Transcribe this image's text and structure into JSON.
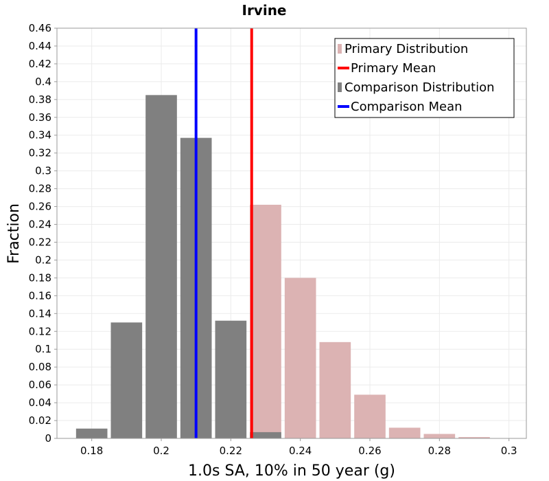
{
  "chart_data": {
    "type": "histogram",
    "title": "Irvine",
    "xlabel": "1.0s SA, 10% in 50 year (g)",
    "ylabel": "Fraction",
    "xlim": [
      0.17,
      0.305
    ],
    "ylim": [
      0,
      0.46
    ],
    "bin_width": 0.01,
    "x_ticks": [
      "0.18",
      "0.2",
      "0.22",
      "0.24",
      "0.26",
      "0.28",
      "0.3"
    ],
    "y_ticks": [
      "0",
      "0.02",
      "0.04",
      "0.06",
      "0.08",
      "0.1",
      "0.12",
      "0.14",
      "0.16",
      "0.18",
      "0.2",
      "0.22",
      "0.24",
      "0.26",
      "0.28",
      "0.3",
      "0.32",
      "0.34",
      "0.36",
      "0.38",
      "0.4",
      "0.42",
      "0.44",
      "0.46"
    ],
    "series": [
      {
        "name": "Primary Distribution",
        "color": "#dcb3b3",
        "bins": [
          {
            "x": 0.23,
            "value": 0.262
          },
          {
            "x": 0.24,
            "value": 0.18
          },
          {
            "x": 0.25,
            "value": 0.108
          },
          {
            "x": 0.26,
            "value": 0.049
          },
          {
            "x": 0.27,
            "value": 0.012
          },
          {
            "x": 0.28,
            "value": 0.005
          },
          {
            "x": 0.29,
            "value": 0.0015
          }
        ]
      },
      {
        "name": "Comparison Distribution",
        "color": "#808080",
        "bins": [
          {
            "x": 0.18,
            "value": 0.011
          },
          {
            "x": 0.19,
            "value": 0.13
          },
          {
            "x": 0.2,
            "value": 0.385
          },
          {
            "x": 0.21,
            "value": 0.337
          },
          {
            "x": 0.22,
            "value": 0.132
          },
          {
            "x": 0.23,
            "value": 0.007
          }
        ]
      }
    ],
    "lines": [
      {
        "name": "Primary Mean",
        "x": 0.226,
        "color": "#ff0000"
      },
      {
        "name": "Comparison Mean",
        "x": 0.21,
        "color": "#0000ff"
      }
    ],
    "legend": {
      "position": "top-right",
      "items": [
        {
          "label": "Primary Distribution",
          "kind": "bar",
          "color": "#dcb3b3"
        },
        {
          "label": "Primary Mean",
          "kind": "line",
          "color": "#ff0000"
        },
        {
          "label": "Comparison Distribution",
          "kind": "bar",
          "color": "#808080"
        },
        {
          "label": "Comparison Mean",
          "kind": "line",
          "color": "#0000ff"
        }
      ]
    },
    "grid": true
  }
}
